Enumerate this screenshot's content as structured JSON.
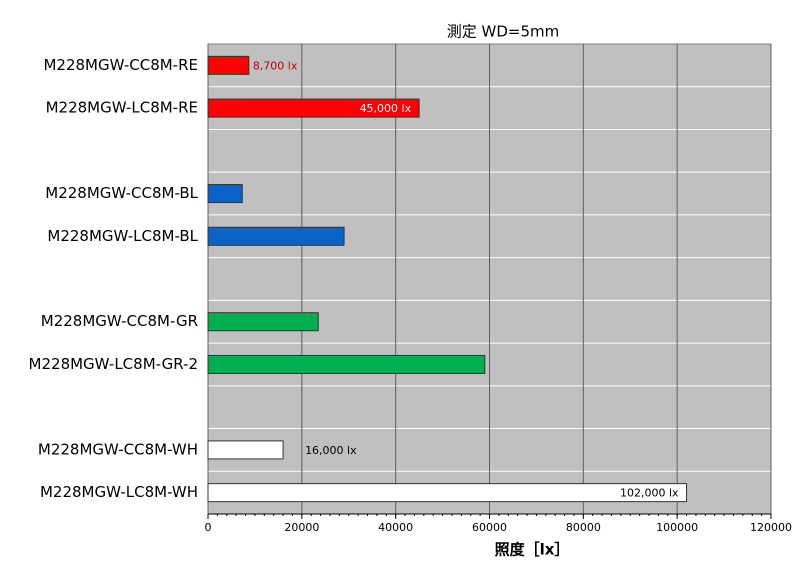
{
  "chart_data": {
    "type": "barh",
    "title": "測定 WD=5mm",
    "x_label": "照度［lx］",
    "categories": [
      "M228MGW-CC8M-RE",
      "M228MGW-LC8M-RE",
      null,
      "M228MGW-CC8M-BL",
      "M228MGW-LC8M-BL",
      null,
      "M228MGW-CC8M-GR",
      "M228MGW-LC8M-GR-2",
      null,
      "M228MGW-CC8M-WH",
      "M228MGW-LC8M-WH"
    ],
    "values": [
      8700,
      45000,
      null,
      7300,
      29000,
      null,
      23500,
      59000,
      null,
      16000,
      102000
    ],
    "value_labels": [
      "8,700 lx",
      "45,000 lx",
      null,
      null,
      null,
      null,
      null,
      null,
      null,
      "16,000 lx",
      "102,000 lx"
    ],
    "colors": [
      "#ff0000",
      "#ff0000",
      null,
      "#0a64c8",
      "#0a64c8",
      null,
      "#00b050",
      "#00b050",
      null,
      "#ffffff",
      "#ffffff"
    ],
    "xlim": [
      0,
      120000
    ],
    "xticks": [
      0,
      20000,
      40000,
      60000,
      80000,
      100000,
      120000
    ],
    "grid": true
  }
}
